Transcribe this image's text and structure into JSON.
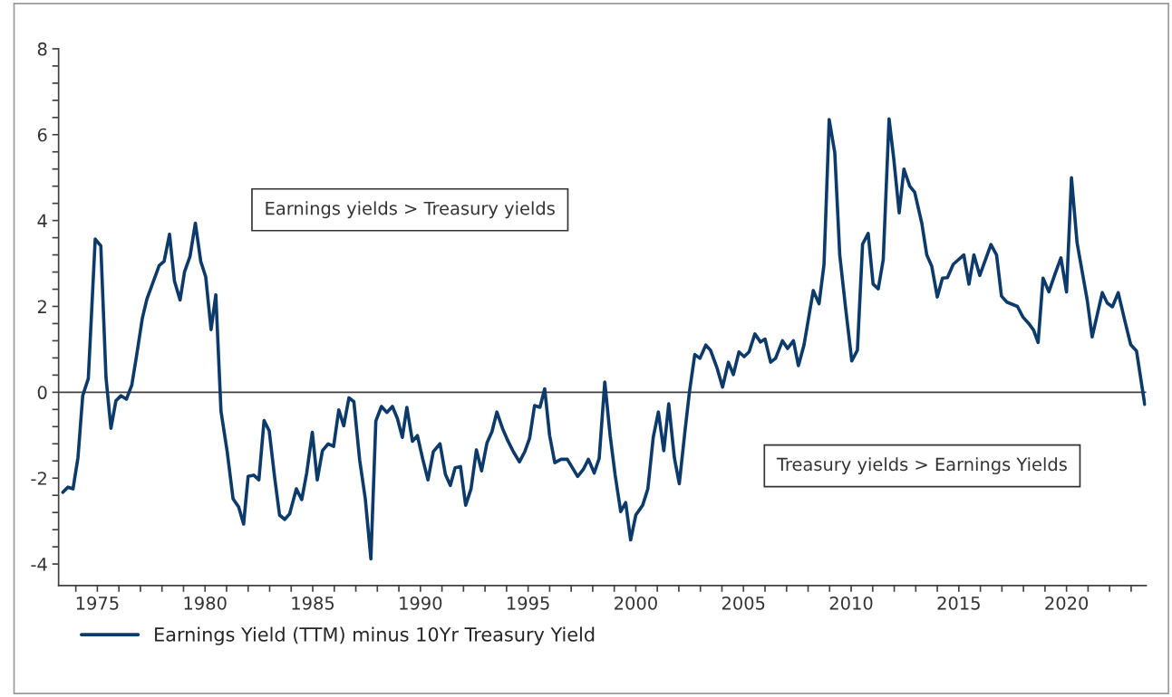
{
  "chart_data": {
    "type": "line",
    "xlim": [
      1973.2,
      2023.7
    ],
    "ylim": [
      -4.5,
      8
    ],
    "xticks": [
      {
        "value": 1974,
        "label": null
      },
      1975,
      {
        "value": 1976,
        "label": null
      },
      {
        "value": 1977,
        "label": null
      },
      {
        "value": 1978,
        "label": null
      },
      {
        "value": 1979,
        "label": null
      },
      1980,
      {
        "value": 1981,
        "label": null
      },
      {
        "value": 1982,
        "label": null
      },
      {
        "value": 1983,
        "label": null
      },
      {
        "value": 1984,
        "label": null
      },
      1985,
      {
        "value": 1986,
        "label": null
      },
      {
        "value": 1987,
        "label": null
      },
      {
        "value": 1988,
        "label": null
      },
      {
        "value": 1989,
        "label": null
      },
      1990,
      {
        "value": 1991,
        "label": null
      },
      {
        "value": 1992,
        "label": null
      },
      {
        "value": 1993,
        "label": null
      },
      {
        "value": 1994,
        "label": null
      },
      1995,
      {
        "value": 1996,
        "label": null
      },
      {
        "value": 1997,
        "label": null
      },
      {
        "value": 1998,
        "label": null
      },
      {
        "value": 1999,
        "label": null
      },
      2000,
      {
        "value": 2001,
        "label": null
      },
      {
        "value": 2002,
        "label": null
      },
      {
        "value": 2003,
        "label": null
      },
      {
        "value": 2004,
        "label": null
      },
      2005,
      {
        "value": 2006,
        "label": null
      },
      {
        "value": 2007,
        "label": null
      },
      {
        "value": 2008,
        "label": null
      },
      {
        "value": 2009,
        "label": null
      },
      2010,
      {
        "value": 2011,
        "label": null
      },
      {
        "value": 2012,
        "label": null
      },
      {
        "value": 2013,
        "label": null
      },
      {
        "value": 2014,
        "label": null
      },
      2015,
      {
        "value": 2016,
        "label": null
      },
      {
        "value": 2017,
        "label": null
      },
      {
        "value": 2018,
        "label": null
      },
      {
        "value": 2019,
        "label": null
      },
      2020,
      {
        "value": 2021,
        "label": null
      },
      {
        "value": 2022,
        "label": null
      },
      {
        "value": 2023,
        "label": null
      }
    ],
    "yticks": [
      -4,
      {
        "value": -3.6,
        "label": null
      },
      {
        "value": -3.2,
        "label": null
      },
      {
        "value": -2.8,
        "label": null
      },
      {
        "value": -2.4,
        "label": null
      },
      -2,
      {
        "value": -1.6,
        "label": null
      },
      {
        "value": -1.2,
        "label": null
      },
      {
        "value": -0.8,
        "label": null
      },
      {
        "value": -0.4,
        "label": null
      },
      0,
      {
        "value": 0.4,
        "label": null
      },
      {
        "value": 0.8,
        "label": null
      },
      {
        "value": 1.2,
        "label": null
      },
      {
        "value": 1.6,
        "label": null
      },
      2,
      {
        "value": 2.4,
        "label": null
      },
      {
        "value": 2.8,
        "label": null
      },
      {
        "value": 3.2,
        "label": null
      },
      {
        "value": 3.6,
        "label": null
      },
      4,
      {
        "value": 4.4,
        "label": null
      },
      {
        "value": 4.8,
        "label": null
      },
      {
        "value": 5.2,
        "label": null
      },
      {
        "value": 5.6,
        "label": null
      },
      6,
      {
        "value": 6.4,
        "label": null
      },
      {
        "value": 6.8,
        "label": null
      },
      {
        "value": 7.2,
        "label": null
      },
      {
        "value": 7.6,
        "label": null
      },
      8
    ],
    "grid": false,
    "legend": "bottom left",
    "marker": "none",
    "line_style": "solid",
    "ref_lines": [
      {
        "axis": "y",
        "value": 0,
        "color": "#404040"
      }
    ],
    "annotations": [
      "Earnings yields > Treasury yields",
      "Treasury yields > Earnings Yields"
    ],
    "series": [
      {
        "name": "Earnings Yield (TTM) minus 10Yr Treasury Yield",
        "color": "#0b3a6b",
        "x": [
          1973.4,
          1973.63,
          1973.87,
          1974.1,
          1974.32,
          1974.58,
          1974.9,
          1975.16,
          1975.4,
          1975.63,
          1975.86,
          1976.1,
          1976.35,
          1976.6,
          1976.82,
          1977.09,
          1977.3,
          1977.87,
          1978.1,
          1978.35,
          1978.58,
          1978.84,
          1979.05,
          1979.3,
          1979.55,
          1979.8,
          1980.03,
          1980.28,
          1980.5,
          1980.74,
          1981.03,
          1981.3,
          1981.56,
          1981.79,
          1982.0,
          1982.26,
          1982.5,
          1982.74,
          1982.98,
          1983.23,
          1983.46,
          1983.7,
          1983.93,
          1984.24,
          1984.49,
          1984.72,
          1984.98,
          1985.21,
          1985.45,
          1985.72,
          1985.97,
          1986.21,
          1986.44,
          1986.68,
          1986.91,
          1987.18,
          1987.44,
          1987.7,
          1987.93,
          1988.19,
          1988.44,
          1988.7,
          1988.93,
          1989.16,
          1989.37,
          1989.63,
          1989.86,
          1990.1,
          1990.35,
          1990.6,
          1990.91,
          1991.16,
          1991.39,
          1991.61,
          1991.86,
          1992.1,
          1992.35,
          1992.6,
          1992.84,
          1993.09,
          1993.32,
          1993.55,
          1993.81,
          1994.07,
          1994.32,
          1994.6,
          1994.84,
          1995.07,
          1995.3,
          1995.55,
          1995.77,
          1996.0,
          1996.24,
          1996.53,
          1996.82,
          1997.3,
          1997.56,
          1997.8,
          1998.07,
          1998.3,
          1998.56,
          1998.81,
          1999.04,
          1999.3,
          1999.53,
          1999.76,
          2000.0,
          2000.32,
          2000.56,
          2000.81,
          2001.05,
          2001.3,
          2001.53,
          2001.79,
          2002.02,
          2002.28,
          2002.49,
          2002.74,
          2002.98,
          2003.25,
          2003.47,
          2003.77,
          2004.03,
          2004.3,
          2004.53,
          2004.79,
          2005.03,
          2005.26,
          2005.53,
          2005.79,
          2006.0,
          2006.26,
          2006.49,
          2006.81,
          2007.05,
          2007.32,
          2007.55,
          2007.81,
          2008.24,
          2008.51,
          2008.74,
          2008.98,
          2009.24,
          2009.47,
          2009.74,
          2010.03,
          2010.29,
          2010.53,
          2010.79,
          2011.02,
          2011.26,
          2011.49,
          2011.76,
          2011.98,
          2012.23,
          2012.45,
          2012.72,
          2012.95,
          2013.28,
          2013.51,
          2013.74,
          2014.0,
          2014.24,
          2014.47,
          2014.74,
          2015.23,
          2015.47,
          2015.7,
          2015.97,
          2016.49,
          2016.75,
          2016.98,
          2017.23,
          2017.72,
          2017.98,
          2018.25,
          2018.47,
          2018.68,
          2018.91,
          2019.18,
          2019.47,
          2019.74,
          2020.0,
          2020.23,
          2020.49,
          2020.96,
          2021.19,
          2021.66,
          2021.89,
          2022.13,
          2022.4,
          2022.71,
          2022.98,
          2023.25,
          2023.63
        ],
        "values": [
          -2.33,
          -2.21,
          -2.25,
          -1.52,
          -0.08,
          0.32,
          3.57,
          3.41,
          0.35,
          -0.84,
          -0.2,
          -0.08,
          -0.16,
          0.17,
          0.85,
          1.73,
          2.17,
          2.95,
          3.05,
          3.68,
          2.59,
          2.15,
          2.81,
          3.16,
          3.94,
          3.05,
          2.69,
          1.46,
          2.27,
          -0.44,
          -1.39,
          -2.48,
          -2.67,
          -3.07,
          -1.96,
          -1.93,
          -2.04,
          -0.66,
          -0.9,
          -1.98,
          -2.86,
          -2.96,
          -2.83,
          -2.25,
          -2.5,
          -1.88,
          -0.93,
          -2.04,
          -1.36,
          -1.2,
          -1.26,
          -0.41,
          -0.78,
          -0.13,
          -0.22,
          -1.58,
          -2.48,
          -3.88,
          -0.67,
          -0.33,
          -0.47,
          -0.33,
          -0.61,
          -1.05,
          -0.35,
          -1.14,
          -1.01,
          -1.54,
          -2.04,
          -1.38,
          -1.2,
          -1.91,
          -2.17,
          -1.76,
          -1.73,
          -2.63,
          -2.25,
          -1.34,
          -1.83,
          -1.18,
          -0.92,
          -0.46,
          -0.84,
          -1.14,
          -1.39,
          -1.62,
          -1.39,
          -1.07,
          -0.31,
          -0.35,
          0.08,
          -1.01,
          -1.64,
          -1.56,
          -1.56,
          -1.96,
          -1.8,
          -1.56,
          -1.88,
          -1.54,
          0.24,
          -1.01,
          -1.92,
          -2.78,
          -2.57,
          -3.44,
          -2.86,
          -2.63,
          -2.25,
          -1.05,
          -0.46,
          -1.36,
          -0.27,
          -1.52,
          -2.13,
          -0.92,
          0.0,
          0.88,
          0.79,
          1.1,
          0.98,
          0.57,
          0.12,
          0.7,
          0.41,
          0.94,
          0.83,
          0.94,
          1.36,
          1.17,
          1.24,
          0.7,
          0.79,
          1.2,
          1.02,
          1.2,
          0.62,
          1.1,
          2.37,
          2.06,
          2.98,
          6.35,
          5.58,
          3.2,
          1.97,
          0.73,
          0.98,
          3.45,
          3.7,
          2.52,
          2.41,
          3.09,
          6.37,
          5.43,
          4.18,
          5.2,
          4.8,
          4.66,
          3.94,
          3.2,
          2.94,
          2.22,
          2.66,
          2.67,
          2.98,
          3.2,
          2.52,
          3.2,
          2.72,
          3.44,
          3.2,
          2.24,
          2.1,
          2.0,
          1.75,
          1.6,
          1.45,
          1.16,
          2.66,
          2.34,
          2.76,
          3.13,
          2.34,
          5.0,
          3.48,
          2.15,
          1.29,
          2.32,
          2.08,
          1.99,
          2.32,
          1.66,
          1.11,
          0.96,
          -0.28
        ]
      }
    ]
  }
}
